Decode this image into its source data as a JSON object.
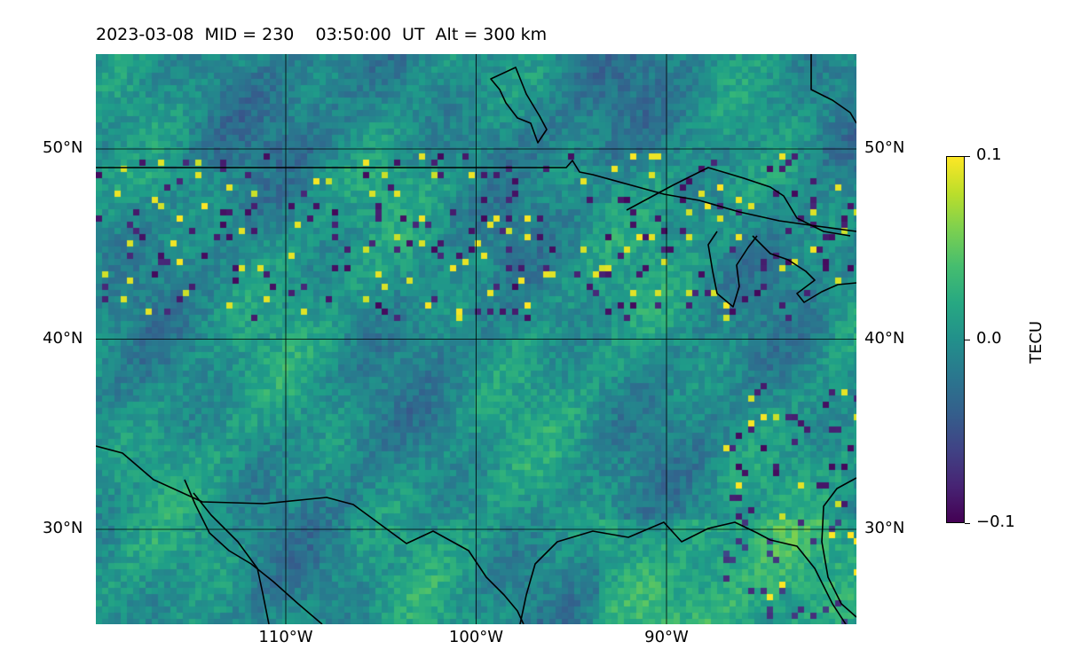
{
  "title": "2023-03-08  MID = 230    03:50:00  UT  Alt = 300 km",
  "map": {
    "lat_ticks": [
      {
        "label": "50°N",
        "value": 50
      },
      {
        "label": "40°N",
        "value": 40
      },
      {
        "label": "30°N",
        "value": 30
      }
    ],
    "lon_ticks": [
      {
        "label": "110°W",
        "value": -110
      },
      {
        "label": "100°W",
        "value": -100
      },
      {
        "label": "90°W",
        "value": -90
      }
    ],
    "extent": {
      "lon_min": -120,
      "lon_max": -80,
      "lat_min": 25,
      "lat_max": 55
    }
  },
  "colorbar": {
    "label": "TECU",
    "colormap": "viridis",
    "ticks": [
      {
        "label": "0.1",
        "value": 0.1
      },
      {
        "label": "0.0",
        "value": 0.0
      },
      {
        "label": "−0.1",
        "value": -0.1
      }
    ],
    "vmin": -0.1,
    "vmax": 0.1
  }
}
